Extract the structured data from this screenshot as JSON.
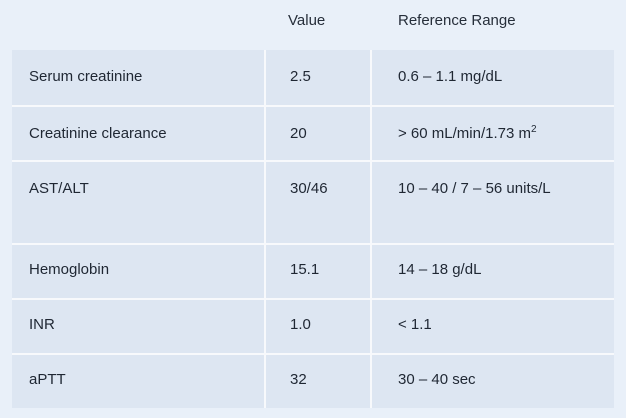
{
  "table": {
    "headers": {
      "label": "",
      "value": "Value",
      "reference": "Reference Range"
    },
    "rows": [
      {
        "label": "Serum creatinine",
        "value": "2.5",
        "reference": "0.6 – 1.1 mg/dL"
      },
      {
        "label": "Creatinine clearance",
        "value": "20",
        "reference": "> 60 mL/min/1.73 m",
        "reference_sup": "2"
      },
      {
        "label": "AST/ALT",
        "value": "30/46",
        "reference": "10 – 40 / 7 – 56 units/L"
      },
      {
        "label": "Hemoglobin",
        "value": "15.1",
        "reference": "14 – 18 g/dL"
      },
      {
        "label": "INR",
        "value": "1.0",
        "reference": "< 1.1"
      },
      {
        "label": "aPTT",
        "value": "32",
        "reference": "30 – 40 sec"
      }
    ]
  }
}
